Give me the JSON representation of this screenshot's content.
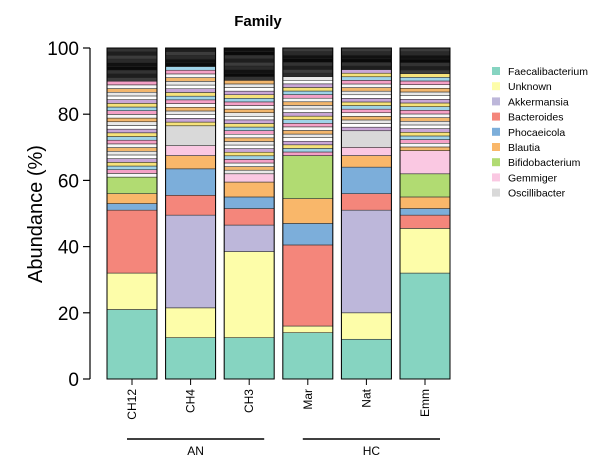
{
  "chart_data": {
    "type": "bar",
    "stacked": true,
    "title": "Family",
    "ylabel": "Abundance (%)",
    "xlabel": "",
    "ylim": [
      0,
      100
    ],
    "yticks": [
      "0",
      "20",
      "40",
      "60",
      "80",
      "100"
    ],
    "categories": [
      "CH12",
      "CH4",
      "CH3",
      "Mar",
      "Nat",
      "Emm"
    ],
    "groups": [
      {
        "label": "AN",
        "categories": [
          "CH12",
          "CH4",
          "CH3"
        ]
      },
      {
        "label": "HC",
        "categories": [
          "Mar",
          "Nat",
          "Emm"
        ]
      }
    ],
    "legend_position": "right",
    "series": [
      {
        "name": "Faecalibacterium",
        "color": "#86D4C1",
        "values": [
          21,
          12.5,
          12.5,
          14,
          12,
          32
        ]
      },
      {
        "name": "Unknown",
        "color": "#FDFDA9",
        "values": [
          11,
          9,
          26,
          2,
          8,
          13.5
        ]
      },
      {
        "name": "Akkermansia",
        "color": "#BDB7DA",
        "values": [
          0,
          28,
          8,
          0,
          31,
          0
        ]
      },
      {
        "name": "Bacteroides",
        "color": "#F4867B",
        "values": [
          19,
          6,
          5,
          24.5,
          5,
          4
        ]
      },
      {
        "name": "Phocaeicola",
        "color": "#7CAEDA",
        "values": [
          2,
          8,
          3.5,
          6.5,
          8,
          2
        ]
      },
      {
        "name": "Blautia",
        "color": "#F9B76A",
        "values": [
          3,
          4,
          4.5,
          7.5,
          3.5,
          3.5
        ]
      },
      {
        "name": "Bifidobacterium",
        "color": "#B1DB72",
        "values": [
          5,
          0,
          0,
          13,
          0,
          7
        ]
      },
      {
        "name": "Gemmiger",
        "color": "#FAC8E2",
        "values": [
          0,
          3,
          2.5,
          0,
          2.5,
          7
        ]
      },
      {
        "name": "Oscillibacter",
        "color": "#D9D9D9",
        "values": [
          0,
          6,
          0,
          0,
          5,
          0
        ]
      }
    ],
    "other_color": "#1a1a1a"
  }
}
